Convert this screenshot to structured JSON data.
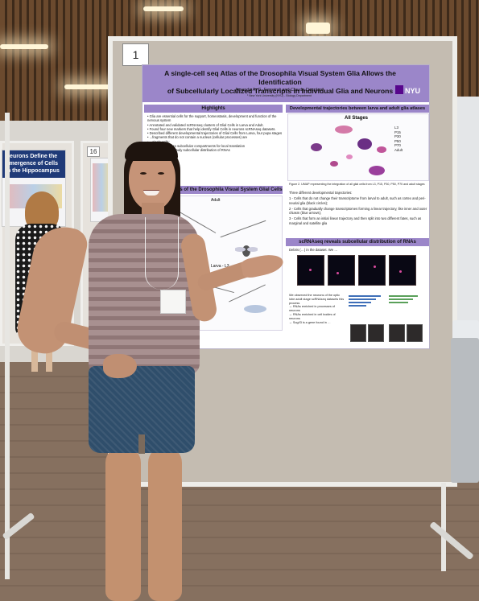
{
  "scene": {
    "board_number": "1",
    "background_board_number": "16"
  },
  "poster": {
    "title_line1": "A single-cell seq Atlas of the Drosophila Visual System Glia Allows the Identification",
    "title_line2": "of Subcellularly Localized Transcripts in Individual Glia and Neurons",
    "authors": "Amanda A. G. Ferreira¹ and Claude Desplan¹",
    "affiliation": "¹ New York University (NYU) - Biology Department",
    "logo_text": "NYU",
    "highlights": {
      "heading": "Highlights",
      "bullets": [
        "• Glia are essential cells for the support, homeostasis, development and function of the nervous system",
        "• Annotated and validated scRNAseq clusters of Glial Cells in Larva and Adult.",
        "• Found four new markers that help identify Glial Cells in neurons scRNAseq datasets.",
        "• Described different developmental trajectories of Glial Cells from Larva, four pupa stages",
        "• ...fragments that do not contain a nucleus (cellular processes) are",
        "• ...single cells:",
        "• ...within the cell to subcellular compartments for local translation",
        "• ...sequencing to study subcellular distribution of RNAs"
      ]
    },
    "atlas": {
      "heading": "scRNA-seq atlas of the Drosophila Visual System Glial Cells",
      "adult_label": "Adult",
      "larva_label": "Larva - L3",
      "caption": "...Drosophila Optic Lobe. Glia"
    },
    "trajectories": {
      "heading": "Developmental trajectories between larva and adult glia atlases",
      "subheading": "All Stages",
      "legend": [
        "L3",
        "P15",
        "P30",
        "P50",
        "P70",
        "Adult"
      ],
      "caption": "Figure 2. UMAP representing the integration of all glial cells from L3, P15, P30, P50, P70 and adult stages",
      "bullets": [
        "Three different developmental trajectories:",
        "1 - Cells that do not change their transcriptome from larval to adult, such as cortex and peri-neurial glia (black circles);",
        "2 - Cells that gradually change transcriptomes forming a linear trajectory, like inner and outer chiasm (blue arrows);",
        "3 - Cells that form an initial linear trajectory and then split into two different fates, such as marginal and satellite glia"
      ]
    },
    "rna_section": {
      "heading": "scRNAseq reveals subcellular distribution of RNAs",
      "intro": "Debris (…) in the dataset. We …",
      "findings": [
        "We observed the neurons of the optic lobe adult stage scRNAseq datasets this process",
        "→ RNAs enriched in processes of neurons",
        "→ RNAs enriched in cell bodies of neurons",
        "→ Sog/I3 is a gene found in …"
      ]
    }
  }
}
